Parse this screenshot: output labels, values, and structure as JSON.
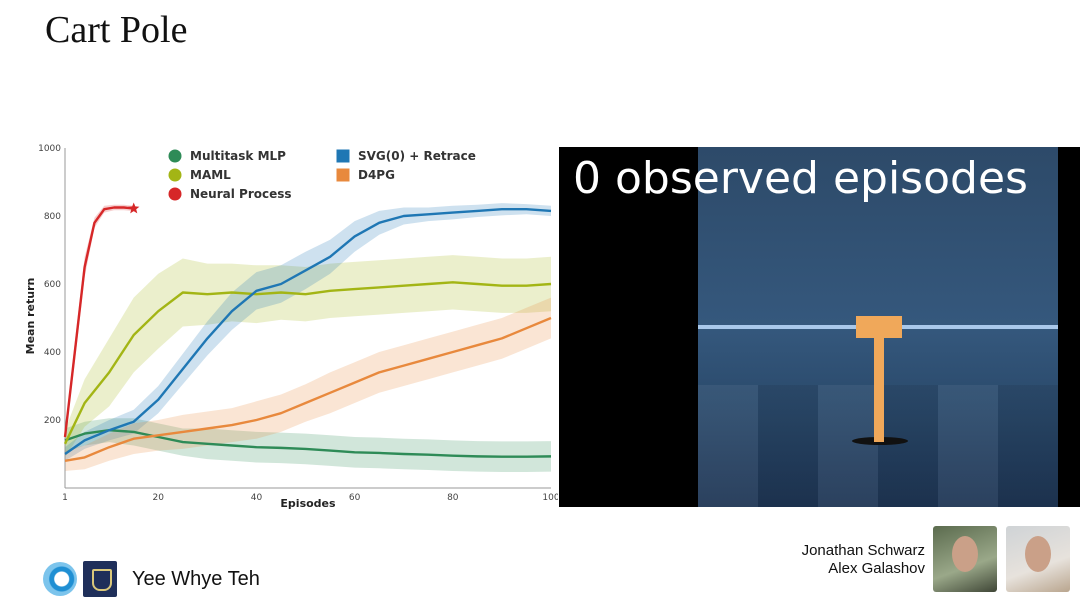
{
  "slide": {
    "title": "Cart Pole",
    "presenter": "Yee Whye Teh",
    "authors": [
      "Jonathan Schwarz",
      "Alex Galashov"
    ]
  },
  "video": {
    "caption": "0 observed episodes"
  },
  "chart_data": {
    "type": "line",
    "title": "",
    "xlabel": "Episodes",
    "ylabel": "Mean return",
    "xlim": [
      1,
      100
    ],
    "ylim": [
      0,
      1000
    ],
    "xticks": [
      1,
      20,
      40,
      60,
      80,
      100
    ],
    "yticks": [
      200,
      400,
      600,
      800,
      1000
    ],
    "legend_placement": "top",
    "legend_columns": [
      [
        "Multitask MLP",
        "MAML",
        "Neural Process"
      ],
      [
        "SVG(0) + Retrace",
        "D4PG"
      ]
    ],
    "series": [
      {
        "name": "Multitask MLP",
        "color": "#2e8b57",
        "x": [
          1,
          5,
          10,
          15,
          20,
          25,
          30,
          35,
          40,
          45,
          50,
          55,
          60,
          65,
          70,
          75,
          80,
          85,
          90,
          95,
          100
        ],
        "y": [
          140,
          160,
          170,
          165,
          150,
          135,
          130,
          125,
          120,
          118,
          115,
          110,
          105,
          103,
          100,
          98,
          95,
          93,
          92,
          92,
          93
        ],
        "band": [
          35,
          35,
          35,
          40,
          40,
          40,
          45,
          45,
          45,
          45,
          45,
          45,
          45,
          45,
          45,
          45,
          45,
          45,
          45,
          45,
          45
        ]
      },
      {
        "name": "MAML",
        "color": "#a3b515",
        "x": [
          1,
          5,
          10,
          15,
          20,
          25,
          30,
          35,
          40,
          45,
          50,
          55,
          60,
          65,
          70,
          75,
          80,
          85,
          90,
          95,
          100
        ],
        "y": [
          130,
          250,
          340,
          450,
          520,
          575,
          570,
          575,
          570,
          575,
          570,
          580,
          585,
          590,
          595,
          600,
          605,
          600,
          595,
          595,
          600
        ],
        "band": [
          40,
          70,
          100,
          110,
          110,
          100,
          90,
          85,
          85,
          80,
          80,
          80,
          80,
          80,
          80,
          80,
          80,
          80,
          80,
          80,
          80
        ]
      },
      {
        "name": "Neural Process",
        "color": "#d62728",
        "x": [
          1,
          3,
          5,
          7,
          9,
          11,
          13,
          15
        ],
        "y": [
          150,
          400,
          650,
          780,
          820,
          825,
          825,
          822
        ],
        "band": [
          20,
          30,
          30,
          15,
          10,
          8,
          8,
          8
        ]
      },
      {
        "name": "SVG(0) + Retrace",
        "color": "#1f77b4",
        "x": [
          1,
          5,
          10,
          15,
          20,
          25,
          30,
          35,
          40,
          45,
          50,
          55,
          60,
          65,
          70,
          75,
          80,
          85,
          90,
          95,
          100
        ],
        "y": [
          100,
          140,
          170,
          195,
          260,
          350,
          440,
          520,
          580,
          600,
          640,
          680,
          740,
          780,
          800,
          805,
          810,
          815,
          820,
          820,
          815
        ],
        "band": [
          20,
          25,
          30,
          35,
          40,
          45,
          50,
          55,
          55,
          55,
          55,
          50,
          45,
          35,
          25,
          20,
          20,
          18,
          18,
          15,
          15
        ]
      },
      {
        "name": "D4PG",
        "color": "#e8893d",
        "x": [
          1,
          5,
          10,
          15,
          20,
          25,
          30,
          35,
          40,
          45,
          50,
          55,
          60,
          65,
          70,
          75,
          80,
          85,
          90,
          95,
          100
        ],
        "y": [
          80,
          90,
          120,
          145,
          155,
          165,
          175,
          185,
          200,
          220,
          250,
          280,
          310,
          340,
          360,
          380,
          400,
          420,
          440,
          470,
          500
        ],
        "band": [
          30,
          35,
          40,
          45,
          45,
          50,
          50,
          50,
          55,
          55,
          55,
          60,
          60,
          60,
          60,
          60,
          60,
          60,
          60,
          60,
          60
        ]
      }
    ]
  }
}
